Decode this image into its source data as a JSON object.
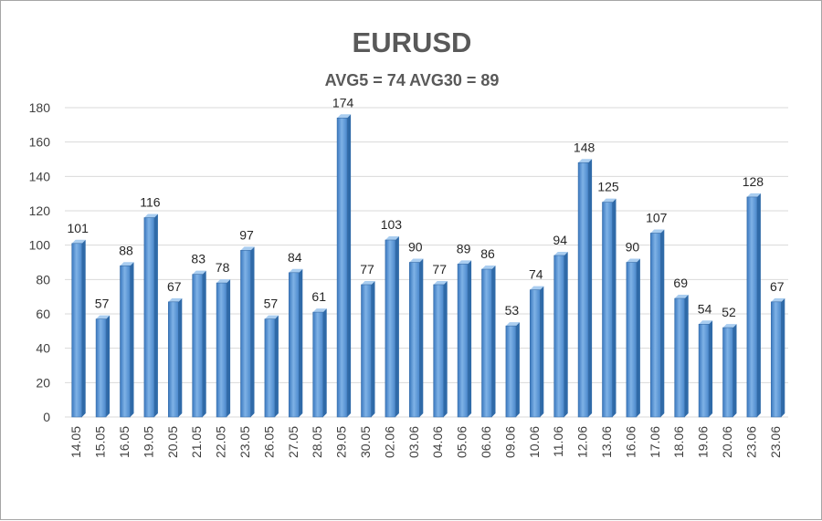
{
  "chart_data": {
    "type": "bar",
    "title": "EURUSD",
    "subtitle": "AVG5 = 74 AVG30 = 89",
    "xlabel": "",
    "ylabel": "",
    "ylim": [
      0,
      180
    ],
    "yticks": [
      0,
      20,
      40,
      60,
      80,
      100,
      120,
      140,
      160,
      180
    ],
    "grid": true,
    "legend": "none",
    "bar_color": "#5b9bd5",
    "categories": [
      "14.05",
      "15.05",
      "16.05",
      "19.05",
      "20.05",
      "21.05",
      "22.05",
      "23.05",
      "26.05",
      "27.05",
      "28.05",
      "29.05",
      "30.05",
      "02.06",
      "03.06",
      "04.06",
      "05.06",
      "06.06",
      "09.06",
      "10.06",
      "11.06",
      "12.06",
      "13.06",
      "16.06",
      "17.06",
      "18.06",
      "19.06",
      "20.06",
      "23.06",
      "23.06"
    ],
    "values": [
      101,
      57,
      88,
      116,
      67,
      83,
      78,
      97,
      57,
      84,
      61,
      174,
      77,
      103,
      90,
      77,
      89,
      86,
      53,
      74,
      94,
      148,
      125,
      90,
      107,
      69,
      54,
      52,
      128,
      67
    ]
  }
}
